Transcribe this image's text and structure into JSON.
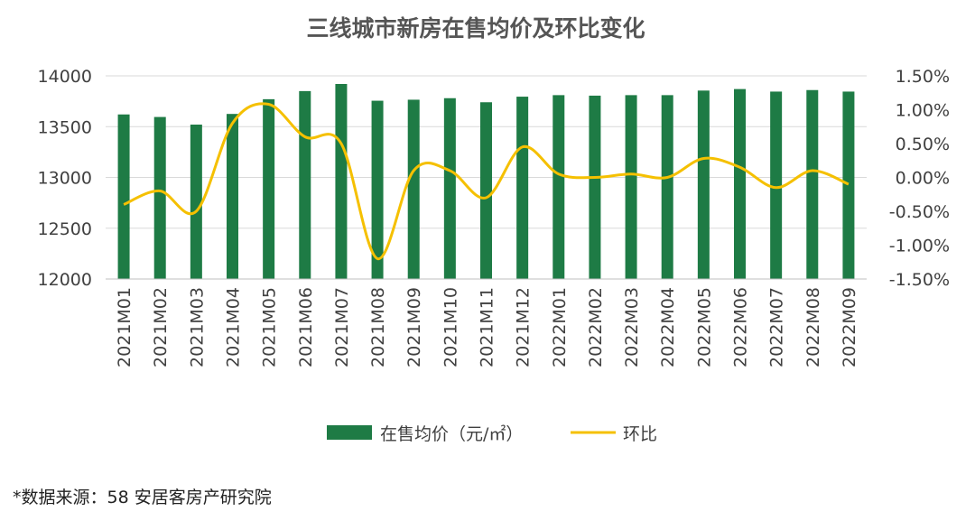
{
  "chart_data": {
    "type": "bar+line",
    "title": "三线城市新房在售均价及环比变化",
    "categories": [
      "2021M01",
      "2021M02",
      "2021M03",
      "2021M04",
      "2021M05",
      "2021M06",
      "2021M07",
      "2021M08",
      "2021M09",
      "2021M10",
      "2021M11",
      "2021M12",
      "2022M01",
      "2022M02",
      "2022M03",
      "2022M04",
      "2022M05",
      "2022M06",
      "2022M07",
      "2022M08",
      "2022M09"
    ],
    "series": [
      {
        "name": "在售均价（元/㎡）",
        "type": "bar",
        "axis": "left",
        "color": "#1e7b45",
        "values": [
          13620,
          13595,
          13520,
          13625,
          13770,
          13850,
          13920,
          13755,
          13765,
          13780,
          13740,
          13795,
          13810,
          13805,
          13810,
          13810,
          13855,
          13870,
          13845,
          13860,
          13845
        ]
      },
      {
        "name": "环比",
        "type": "line",
        "axis": "right",
        "color": "#f5c000",
        "unit": "%",
        "values": [
          -0.4,
          -0.2,
          -0.5,
          0.8,
          1.08,
          0.6,
          0.5,
          -1.2,
          0.1,
          0.1,
          -0.3,
          0.45,
          0.05,
          0.0,
          0.05,
          0.0,
          0.28,
          0.15,
          -0.15,
          0.1,
          -0.1
        ]
      }
    ],
    "y_left": {
      "min": 12000,
      "max": 14000,
      "ticks": [
        "12000",
        "12500",
        "13000",
        "13500",
        "14000"
      ]
    },
    "y_right": {
      "min": -1.5,
      "max": 1.5,
      "ticks": [
        "-1.50%",
        "-1.00%",
        "-0.50%",
        "0.00%",
        "0.50%",
        "1.00%",
        "1.50%"
      ]
    },
    "legend_position": "bottom",
    "grid": true
  },
  "source_note": "*数据来源：58 安居客房产研究院"
}
